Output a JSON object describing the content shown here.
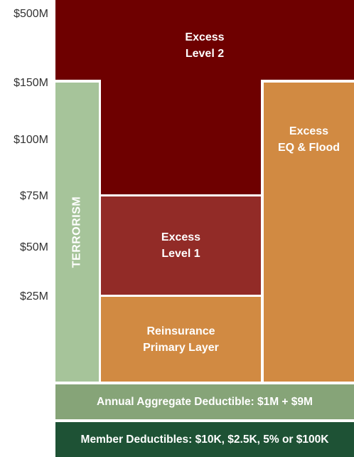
{
  "axis": {
    "labels": [
      "$500M",
      "$150M",
      "$100M",
      "$75M",
      "$50M",
      "$25M"
    ]
  },
  "layers": {
    "excess_level_2": {
      "label": "Excess\nLevel 2",
      "color": "#6e0000"
    },
    "terrorism": {
      "label": "TERRORISM",
      "color": "#a6c49a"
    },
    "excess_eq_flood": {
      "label": "Excess\nEQ & Flood",
      "color": "#d18a42"
    },
    "excess_level_1": {
      "label": "Excess\nLevel 1",
      "color": "#922b27"
    },
    "reinsurance_primary": {
      "label": "Reinsurance\nPrimary Layer",
      "color": "#d18a42"
    }
  },
  "bands": {
    "annual_aggregate": {
      "label": "Annual Aggregate Deductible: $1M + $9M",
      "color": "#86a478"
    },
    "member_deductibles": {
      "label": "Member Deductibles: $10K, $2.5K, 5% or $100K",
      "color": "#1e5235"
    }
  }
}
